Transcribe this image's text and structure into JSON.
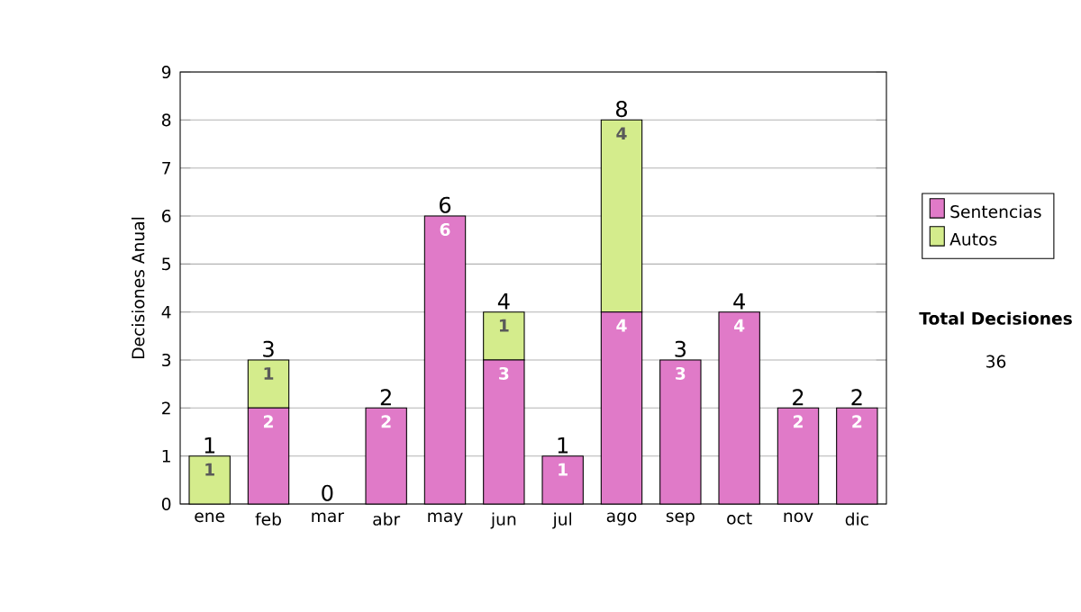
{
  "chart_data": {
    "type": "bar",
    "stacked": true,
    "ylabel": "Decisiones Anual",
    "categories": [
      "ene",
      "feb",
      "mar",
      "abr",
      "may",
      "jun",
      "jul",
      "ago",
      "sep",
      "oct",
      "nov",
      "dic"
    ],
    "series": [
      {
        "name": "Sentencias",
        "color": "#e07ac8",
        "values": [
          0,
          2,
          0,
          2,
          6,
          3,
          1,
          4,
          3,
          4,
          2,
          2
        ],
        "value_labels": [
          null,
          "2",
          null,
          "2",
          "6",
          "3",
          "1",
          "4",
          "3",
          "4",
          "2",
          "2"
        ]
      },
      {
        "name": "Autos",
        "color": "#d4ec8c",
        "values": [
          1,
          1,
          0,
          0,
          0,
          1,
          0,
          4,
          0,
          0,
          0,
          0
        ],
        "value_labels": [
          "1",
          "1",
          null,
          null,
          null,
          "1",
          null,
          "4",
          null,
          null,
          null,
          null
        ]
      }
    ],
    "totals": [
      "1",
      "3",
      "0",
      "2",
      "6",
      "4",
      "1",
      "8",
      "3",
      "4",
      "2",
      "2"
    ],
    "ylim": [
      0,
      9
    ],
    "yticks": [
      0,
      1,
      2,
      3,
      4,
      5,
      6,
      7,
      8,
      9
    ],
    "grid": "y",
    "legend": "right",
    "annotations": [
      "Total Decisiones",
      "36"
    ]
  }
}
